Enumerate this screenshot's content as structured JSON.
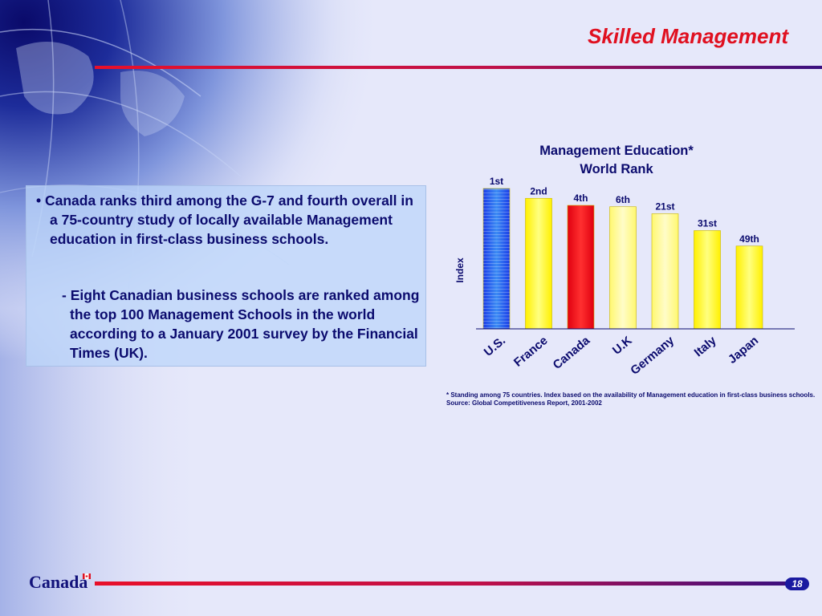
{
  "slide": {
    "title": "Skilled Management",
    "brand": "Canada",
    "page_number": "18"
  },
  "bullets": {
    "main": "• Canada ranks third among the G-7 and fourth overall in a 75-country study of locally available Management education in first-class business schools.",
    "sub": "- Eight Canadian business schools are ranked among the top 100 Management Schools in the world according to a January 2001 survey by the Financial Times (UK)."
  },
  "footnote": {
    "note": "* Standing among 75 countries.  Index based on the availability of Management education in first-class business schools.",
    "source": "Source:  Global Competitiveness Report, 2001-2002"
  },
  "chart_data": {
    "type": "bar",
    "title_line1": "Management Education*",
    "title_line2": "World Rank",
    "ylabel": "Index",
    "xlabel": "",
    "categories": [
      "U.S.",
      "France",
      "Canada",
      "U.K",
      "Germany",
      "Italy",
      "Japan"
    ],
    "values": [
      100,
      93,
      88,
      87,
      82,
      70,
      59
    ],
    "ylim": [
      0,
      100
    ],
    "data_labels": [
      "1st",
      "2nd",
      "4th",
      "6th",
      "21st",
      "31st",
      "49th"
    ],
    "bar_colors": [
      "blue-gradient",
      "yellow",
      "red",
      "light-yellow",
      "light-yellow",
      "yellow",
      "yellow"
    ],
    "grid": false,
    "legend": "none"
  }
}
